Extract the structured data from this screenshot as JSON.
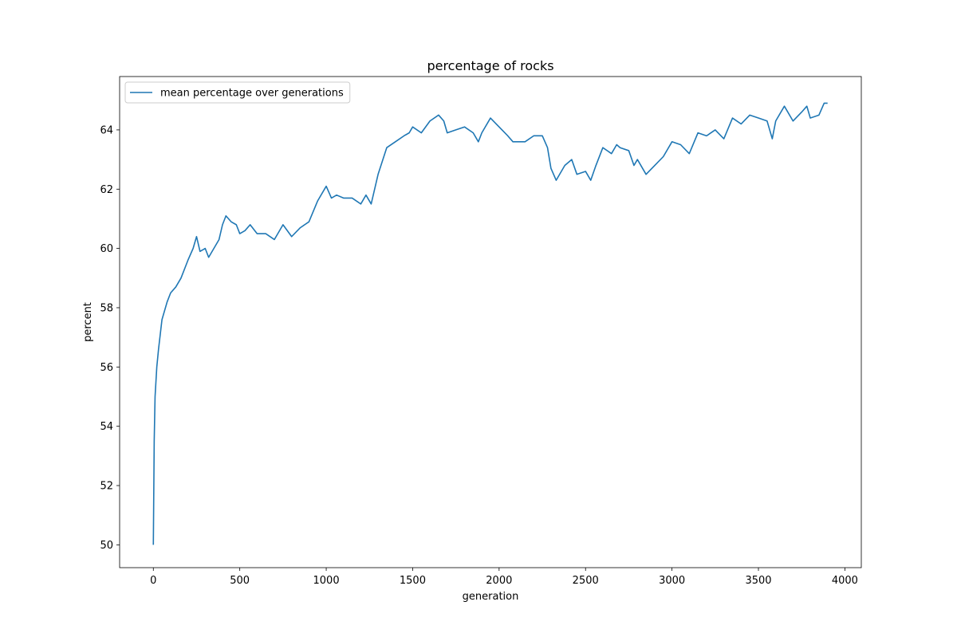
{
  "chart_data": {
    "type": "line",
    "title": "percentage of rocks",
    "x_label": "generation",
    "y_label": "percent",
    "x": [
      0,
      5,
      10,
      20,
      30,
      50,
      80,
      100,
      130,
      160,
      200,
      230,
      250,
      270,
      300,
      320,
      350,
      380,
      400,
      420,
      450,
      480,
      500,
      530,
      560,
      600,
      650,
      700,
      750,
      800,
      850,
      900,
      950,
      1000,
      1030,
      1060,
      1100,
      1150,
      1200,
      1230,
      1260,
      1300,
      1350,
      1400,
      1450,
      1480,
      1500,
      1550,
      1600,
      1650,
      1680,
      1700,
      1750,
      1800,
      1850,
      1880,
      1900,
      1950,
      2000,
      2050,
      2080,
      2150,
      2200,
      2250,
      2280,
      2300,
      2330,
      2380,
      2420,
      2450,
      2500,
      2530,
      2560,
      2600,
      2650,
      2680,
      2700,
      2750,
      2780,
      2800,
      2850,
      2900,
      2950,
      3000,
      3050,
      3100,
      3150,
      3200,
      3250,
      3300,
      3350,
      3400,
      3450,
      3500,
      3550,
      3580,
      3600,
      3650,
      3700,
      3750,
      3780,
      3800,
      3850,
      3880,
      3900
    ],
    "series": [
      {
        "name": "mean percentage over generations",
        "color": "#1f77b4",
        "values": [
          50.0,
          53.5,
          55.0,
          56.0,
          56.6,
          57.6,
          58.2,
          58.5,
          58.7,
          59.0,
          59.6,
          60.0,
          60.4,
          59.9,
          60.0,
          59.7,
          60.0,
          60.3,
          60.8,
          61.1,
          60.9,
          60.8,
          60.5,
          60.6,
          60.8,
          60.5,
          60.5,
          60.3,
          60.8,
          60.4,
          60.7,
          60.9,
          61.6,
          62.1,
          61.7,
          61.8,
          61.7,
          61.7,
          61.5,
          61.8,
          61.5,
          62.5,
          63.4,
          63.6,
          63.8,
          63.9,
          64.1,
          63.9,
          64.3,
          64.5,
          64.3,
          63.9,
          64.0,
          64.1,
          63.9,
          63.6,
          63.9,
          64.4,
          64.1,
          63.8,
          63.6,
          63.6,
          63.8,
          63.8,
          63.4,
          62.7,
          62.3,
          62.8,
          63.0,
          62.5,
          62.6,
          62.3,
          62.8,
          63.4,
          63.2,
          63.5,
          63.4,
          63.3,
          62.8,
          63.0,
          62.5,
          62.8,
          63.1,
          63.6,
          63.5,
          63.2,
          63.9,
          63.8,
          64.0,
          63.7,
          64.4,
          64.2,
          64.5,
          64.4,
          64.3,
          63.7,
          64.3,
          64.8,
          64.3,
          64.6,
          64.8,
          64.4,
          64.5,
          64.9,
          64.9
        ]
      }
    ],
    "xlim": [
      -195,
      4095
    ],
    "ylim": [
      49.23,
      65.8
    ],
    "xticks": [
      0,
      500,
      1000,
      1500,
      2000,
      2500,
      3000,
      3500,
      4000
    ],
    "yticks": [
      50,
      52,
      54,
      56,
      58,
      60,
      62,
      64
    ],
    "legend": "upper left"
  }
}
